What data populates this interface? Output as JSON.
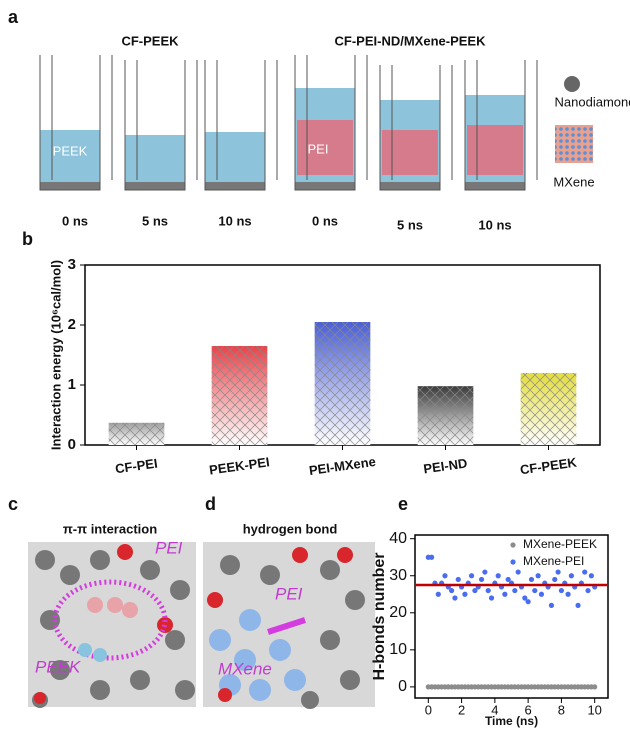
{
  "figure": {
    "a": {
      "label": "a",
      "titles": [
        "CF-PEEK",
        "CF-PEI-ND/MXene-PEEK"
      ],
      "times": [
        "0 ns",
        "5 ns",
        "10 ns",
        "0 ns",
        "5 ns",
        "10 ns"
      ],
      "box_labels": [
        "PEEK",
        "PEI"
      ],
      "legend": [
        "Nanodiamond",
        "MXene"
      ]
    },
    "b": {
      "label": "b"
    },
    "c": {
      "label": "c",
      "title": "π-π interaction",
      "tags": [
        "PEI",
        "PEEK"
      ]
    },
    "d": {
      "label": "d",
      "title": "hydrogen bond",
      "tags": [
        "PEI",
        "MXene"
      ]
    },
    "e": {
      "label": "e"
    }
  },
  "chart_data": [
    {
      "type": "bar",
      "ylabel": "Interaction energy (10⁶cal/mol)",
      "categories": [
        "CF-PEI",
        "PEEK-PEI",
        "PEI-MXene",
        "PEI-ND",
        "CF-PEEK"
      ],
      "values": [
        0.37,
        1.65,
        2.05,
        0.98,
        1.2
      ],
      "colors": [
        "#9e9e9e",
        "#e8434a",
        "#4b5fd6",
        "#3a3a3a",
        "#e3dd3c"
      ],
      "ylim": [
        0,
        3
      ],
      "yticks": [
        0,
        1,
        2,
        3
      ]
    },
    {
      "type": "scatter",
      "xlabel": "Time (ns)",
      "ylabel": "H-bonds number",
      "x": [
        0,
        0.2,
        0.4,
        0.6,
        0.8,
        1,
        1.2,
        1.4,
        1.6,
        1.8,
        2,
        2.2,
        2.4,
        2.6,
        2.8,
        3,
        3.2,
        3.4,
        3.6,
        3.8,
        4,
        4.2,
        4.4,
        4.6,
        4.8,
        5,
        5.2,
        5.4,
        5.6,
        5.8,
        6,
        6.2,
        6.4,
        6.6,
        6.8,
        7,
        7.2,
        7.4,
        7.6,
        7.8,
        8,
        8.2,
        8.4,
        8.6,
        8.8,
        9,
        9.2,
        9.4,
        9.6,
        9.8,
        10
      ],
      "series": [
        {
          "name": "MXene-PEEK",
          "color": "#8c8c8c",
          "values": [
            0,
            0,
            0,
            0,
            0,
            0,
            0,
            0,
            0,
            0,
            0,
            0,
            0,
            0,
            0,
            0,
            0,
            0,
            0,
            0,
            0,
            0,
            0,
            0,
            0,
            0,
            0,
            0,
            0,
            0,
            0,
            0,
            0,
            0,
            0,
            0,
            0,
            0,
            0,
            0,
            0,
            0,
            0,
            0,
            0,
            0,
            0,
            0,
            0,
            0,
            0
          ]
        },
        {
          "name": "MXene-PEI",
          "color": "#4a6cf0",
          "values": [
            35,
            35,
            28,
            25,
            28,
            30,
            27,
            26,
            24,
            29,
            27,
            25,
            28,
            30,
            26,
            27,
            29,
            31,
            26,
            24,
            28,
            30,
            27,
            25,
            29,
            28,
            26,
            31,
            27,
            24,
            23,
            29,
            26,
            30,
            25,
            28,
            27,
            22,
            29,
            31,
            26,
            28,
            25,
            30,
            27,
            22,
            28,
            31,
            26,
            30,
            27
          ]
        }
      ],
      "hline": {
        "value": 27.5,
        "color": "#c00000"
      },
      "xlim": [
        -0.8,
        10.8
      ],
      "xticks": [
        0,
        2,
        4,
        6,
        8,
        10
      ],
      "ylim": [
        -3,
        41
      ],
      "yticks": [
        0,
        10,
        20,
        30,
        40
      ],
      "legend": "upper right"
    }
  ]
}
